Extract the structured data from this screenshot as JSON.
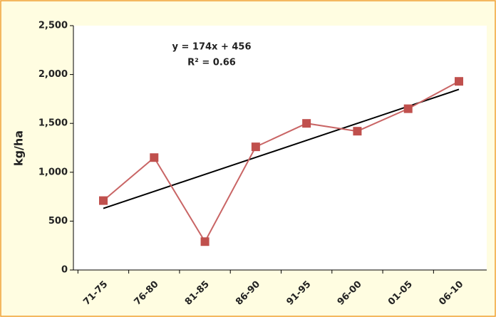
{
  "chart_data": {
    "type": "line",
    "y_label": "kg/ha",
    "annotations": [
      "y = 174x + 456",
      "R² = 0.66"
    ],
    "categories": [
      "71-75",
      "76-80",
      "81-85",
      "86-90",
      "91-95",
      "96-00",
      "01-05",
      "06-10"
    ],
    "series": [
      {
        "color": "#c0504d",
        "values": [
          710,
          1150,
          290,
          1260,
          1500,
          1420,
          1650,
          1930
        ]
      },
      {
        "color": "#000000",
        "values": [
          630,
          804,
          978,
          1152,
          1326,
          1500,
          1674,
          1848
        ]
      }
    ],
    "ylim": [
      0,
      2500
    ],
    "yticks": [
      0,
      500,
      {
        "value": 1000,
        "label": "1,000"
      },
      {
        "value": 1500,
        "label": "1,500"
      },
      {
        "value": 2000,
        "label": "2,000"
      },
      {
        "value": 2500,
        "label": "2,500"
      }
    ],
    "grid": false
  }
}
